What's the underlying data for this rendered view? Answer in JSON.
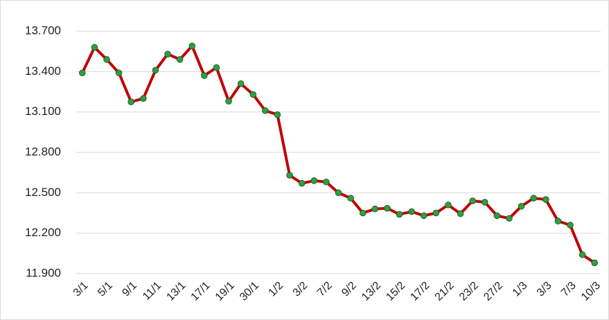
{
  "chart_data": {
    "type": "line",
    "categories": [
      "3/1",
      null,
      "5/1",
      null,
      "9/1",
      null,
      "11/1",
      null,
      "13/1",
      null,
      "17/1",
      null,
      "19/1",
      null,
      "30/1",
      null,
      "1/2",
      null,
      "3/2",
      null,
      "7/2",
      null,
      "9/2",
      null,
      "13/2",
      null,
      "15/2",
      null,
      "17/2",
      null,
      "21/2",
      null,
      "23/2",
      null,
      "27/2",
      null,
      "1/3",
      null,
      "3/3",
      null,
      "7/3",
      null,
      "10/3"
    ],
    "values": [
      13390,
      13580,
      13490,
      13390,
      13175,
      13200,
      13410,
      13530,
      13490,
      13590,
      13370,
      13430,
      13180,
      13310,
      13230,
      13110,
      13080,
      12630,
      12570,
      12590,
      12580,
      12500,
      12460,
      12350,
      12380,
      12385,
      12340,
      12360,
      12330,
      12350,
      12410,
      12345,
      12440,
      12430,
      12330,
      12310,
      12400,
      12460,
      12450,
      12290,
      12260,
      12040,
      11980
    ],
    "color": "#c00000",
    "marker_color": "#2ea043",
    "ylim": [
      11900,
      13700
    ],
    "yticks": [
      {
        "value": 11900,
        "label": "11.900"
      },
      {
        "value": 12200,
        "label": "12.200"
      },
      {
        "value": 12500,
        "label": "12.500"
      },
      {
        "value": 12800,
        "label": "12.800"
      },
      {
        "value": 13100,
        "label": "13.100"
      },
      {
        "value": 13400,
        "label": "13.400"
      },
      {
        "value": 13700,
        "label": "13.700"
      }
    ],
    "grid": true
  }
}
